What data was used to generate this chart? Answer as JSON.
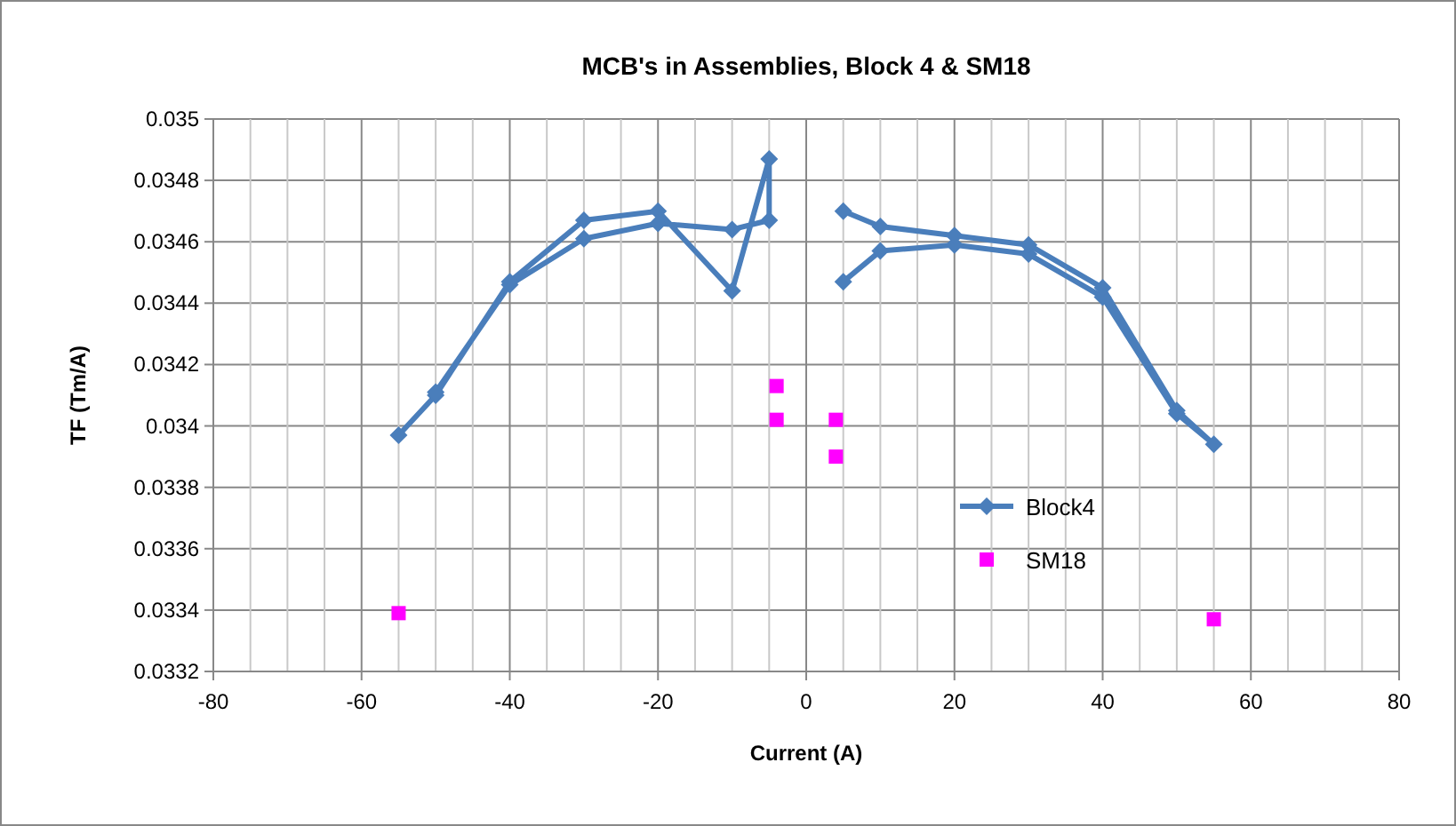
{
  "chart_data": {
    "type": "line",
    "title": "MCB's in Assemblies, Block 4 & SM18",
    "xlabel": "Current (A)",
    "ylabel": "TF (Tm/A)",
    "xlim": [
      -80,
      80
    ],
    "ylim": [
      0.0332,
      0.035
    ],
    "xticks": [
      -80,
      {
        "value": -75,
        "label": null
      },
      {
        "value": -70,
        "label": null
      },
      {
        "value": -65,
        "label": null
      },
      -60,
      {
        "value": -55,
        "label": null
      },
      {
        "value": -50,
        "label": null
      },
      {
        "value": -45,
        "label": null
      },
      -40,
      {
        "value": -35,
        "label": null
      },
      {
        "value": -30,
        "label": null
      },
      {
        "value": -25,
        "label": null
      },
      -20,
      {
        "value": -15,
        "label": null
      },
      {
        "value": -10,
        "label": null
      },
      {
        "value": -5,
        "label": null
      },
      0,
      {
        "value": 5,
        "label": null
      },
      {
        "value": 10,
        "label": null
      },
      {
        "value": 15,
        "label": null
      },
      20,
      {
        "value": 25,
        "label": null
      },
      {
        "value": 30,
        "label": null
      },
      {
        "value": 35,
        "label": null
      },
      40,
      {
        "value": 45,
        "label": null
      },
      {
        "value": 50,
        "label": null
      },
      {
        "value": 55,
        "label": null
      },
      60,
      {
        "value": 65,
        "label": null
      },
      {
        "value": 70,
        "label": null
      },
      {
        "value": 75,
        "label": null
      },
      80
    ],
    "yticks": [
      0.0332,
      0.0334,
      0.0336,
      0.0338,
      0.034,
      0.0342,
      0.0344,
      0.0346,
      0.0348,
      0.035
    ],
    "grid": true,
    "legend": "right",
    "series": [
      {
        "name": "Block4",
        "color": "#4a7ebb",
        "marker": "diamond",
        "x": [
          -55,
          -50,
          -40,
          -30,
          -20,
          -10,
          -5,
          -5,
          -10,
          -20,
          -30,
          -40,
          -50,
          0,
          5,
          10,
          20,
          30,
          40,
          50,
          55,
          50,
          40,
          30,
          20,
          10,
          5
        ],
        "values": [
          0.03397,
          0.0341,
          0.03447,
          0.03467,
          0.0347,
          0.03444,
          0.03487,
          0.03467,
          0.03464,
          0.03466,
          0.03461,
          0.03446,
          0.03411,
          null,
          0.03447,
          0.03457,
          0.03459,
          0.03456,
          0.03442,
          0.03404,
          0.03394,
          0.03405,
          0.03445,
          0.03459,
          0.03462,
          0.03465,
          0.0347
        ]
      },
      {
        "name": "SM18",
        "type": "scatter",
        "color": "#ff00ff",
        "marker": "square",
        "x": [
          -55,
          -4,
          -4,
          4,
          4,
          55
        ],
        "values": [
          0.03339,
          0.03413,
          0.03402,
          0.03402,
          0.0339,
          0.03337
        ]
      }
    ]
  }
}
